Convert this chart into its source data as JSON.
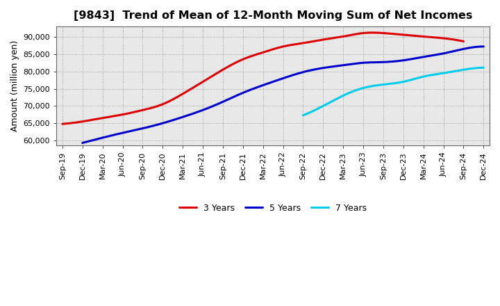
{
  "title": "[9843]  Trend of Mean of 12-Month Moving Sum of Net Incomes",
  "ylabel": "Amount (million yen)",
  "background_color": "#ffffff",
  "plot_bg_color": "#f0f0f0",
  "grid_color": "#888888",
  "title_fontsize": 11.5,
  "label_fontsize": 9,
  "tick_fontsize": 8,
  "legend_fontsize": 9,
  "ylim": [
    58500,
    93000
  ],
  "yticks": [
    60000,
    65000,
    70000,
    75000,
    80000,
    85000,
    90000
  ],
  "x_labels": [
    "Sep-19",
    "Dec-19",
    "Mar-20",
    "Jun-20",
    "Sep-20",
    "Dec-20",
    "Mar-21",
    "Jun-21",
    "Sep-21",
    "Dec-21",
    "Mar-22",
    "Jun-22",
    "Sep-22",
    "Dec-22",
    "Mar-23",
    "Jun-23",
    "Sep-23",
    "Dec-23",
    "Mar-24",
    "Jun-24",
    "Sep-24",
    "Dec-24"
  ],
  "series": {
    "3 Years": {
      "color": "#dd0000",
      "linewidth": 2.2,
      "y": [
        64800,
        65500,
        66500,
        67500,
        68800,
        70500,
        73500,
        77000,
        80500,
        83500,
        85500,
        87200,
        88200,
        89200,
        90100,
        91100,
        91100,
        90600,
        90100,
        89600,
        88700,
        null
      ]
    },
    "5 Years": {
      "color": "#0000cc",
      "linewidth": 2.2,
      "y": [
        null,
        59300,
        60800,
        62200,
        63500,
        65000,
        66800,
        68800,
        71200,
        73800,
        76000,
        78000,
        79800,
        81000,
        81800,
        82500,
        82700,
        83200,
        84200,
        85200,
        86500,
        87200
      ]
    },
    "7 Years": {
      "color": "#00ccee",
      "linewidth": 2.2,
      "y": [
        null,
        null,
        null,
        null,
        null,
        null,
        null,
        null,
        null,
        null,
        null,
        null,
        67300,
        70000,
        73000,
        75200,
        76200,
        77000,
        78500,
        79500,
        80500,
        81100
      ]
    },
    "10 Years": {
      "color": "#008800",
      "linewidth": 2.2,
      "y": [
        null,
        null,
        null,
        null,
        null,
        null,
        null,
        null,
        null,
        null,
        null,
        null,
        null,
        null,
        null,
        null,
        null,
        null,
        null,
        null,
        null,
        null
      ]
    }
  }
}
